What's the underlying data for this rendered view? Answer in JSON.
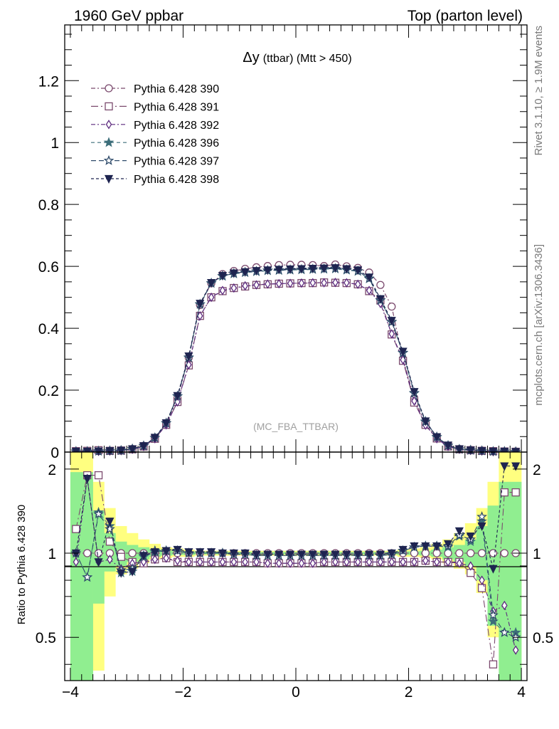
{
  "header": {
    "left": "1960 GeV ppbar",
    "right": "Top (parton level)"
  },
  "side_labels": {
    "rivet": "Rivet 3.1.10, ≥ 1.9M events",
    "mcplots": "mcplots.cern.ch [arXiv:1306.3436]"
  },
  "chart_data": [
    {
      "type": "line",
      "title": "Δy (ttbar) (Mtt > 450)",
      "title_main": "Δy",
      "title_sub": "(ttbar) (Mtt > 450)",
      "annotation": "(MC_FBA_TTBAR)",
      "xlim": [
        -4.1,
        4.1
      ],
      "ylim": [
        0,
        1.38
      ],
      "yticks": [
        0,
        0.2,
        0.4,
        0.6,
        0.8,
        1,
        1.2
      ],
      "ytick_labels": [
        "0",
        "0.2",
        "0.4",
        "0.6",
        "0.8",
        "1",
        "1.2"
      ],
      "legend_position": "top-left",
      "x": [
        -3.9,
        -3.7,
        -3.5,
        -3.3,
        -3.1,
        -2.9,
        -2.7,
        -2.5,
        -2.3,
        -2.1,
        -1.9,
        -1.7,
        -1.5,
        -1.3,
        -1.1,
        -0.9,
        -0.7,
        -0.5,
        -0.3,
        -0.1,
        0.1,
        0.3,
        0.5,
        0.7,
        0.9,
        1.1,
        1.3,
        1.5,
        1.7,
        1.9,
        2.1,
        2.3,
        2.5,
        2.7,
        2.9,
        3.1,
        3.3,
        3.5,
        3.7,
        3.9
      ],
      "series": [
        {
          "name": "Pythia 6.428 390",
          "color": "#7b4a6e",
          "marker": "circle-open",
          "dash": "6,3,2,3",
          "values": [
            0.002,
            0.002,
            0.003,
            0.004,
            0.006,
            0.01,
            0.02,
            0.045,
            0.09,
            0.175,
            0.305,
            0.475,
            0.545,
            0.575,
            0.585,
            0.592,
            0.597,
            0.601,
            0.604,
            0.605,
            0.605,
            0.604,
            0.601,
            0.606,
            0.6,
            0.595,
            0.58,
            0.54,
            0.47,
            0.3,
            0.175,
            0.09,
            0.045,
            0.02,
            0.01,
            0.007,
            0.005,
            0.003,
            0.002,
            0.002
          ]
        },
        {
          "name": "Pythia 6.428 391",
          "color": "#7b4a6e",
          "marker": "square-open",
          "dash": "10,4,2,4",
          "values": [
            0.003,
            0.004,
            0.006,
            0.004,
            0.005,
            0.009,
            0.018,
            0.043,
            0.088,
            0.162,
            0.28,
            0.44,
            0.5,
            0.52,
            0.53,
            0.535,
            0.54,
            0.542,
            0.544,
            0.545,
            0.546,
            0.546,
            0.548,
            0.547,
            0.546,
            0.542,
            0.52,
            0.49,
            0.38,
            0.295,
            0.16,
            0.088,
            0.044,
            0.018,
            0.009,
            0.006,
            0.004,
            0.003,
            0.002,
            0.001
          ]
        },
        {
          "name": "Pythia 6.428 392",
          "color": "#5c2a7e",
          "marker": "diamond-open",
          "dash": "6,3,2,3",
          "values": [
            0.002,
            0.002,
            0.003,
            0.004,
            0.006,
            0.009,
            0.018,
            0.043,
            0.088,
            0.162,
            0.282,
            0.44,
            0.5,
            0.522,
            0.53,
            0.537,
            0.54,
            0.543,
            0.544,
            0.545,
            0.546,
            0.547,
            0.547,
            0.548,
            0.547,
            0.542,
            0.522,
            0.48,
            0.382,
            0.298,
            0.165,
            0.087,
            0.043,
            0.018,
            0.009,
            0.006,
            0.004,
            0.002,
            0.001,
            0.001
          ]
        },
        {
          "name": "Pythia 6.428 396",
          "color": "#3d6e7a",
          "marker": "star-filled",
          "dash": "5,4",
          "values": [
            0.002,
            0.002,
            0.003,
            0.004,
            0.005,
            0.01,
            0.02,
            0.046,
            0.093,
            0.18,
            0.305,
            0.477,
            0.545,
            0.568,
            0.576,
            0.58,
            0.583,
            0.586,
            0.587,
            0.588,
            0.589,
            0.59,
            0.591,
            0.592,
            0.588,
            0.584,
            0.56,
            0.49,
            0.42,
            0.32,
            0.19,
            0.098,
            0.048,
            0.021,
            0.009,
            0.006,
            0.004,
            0.002,
            0.002,
            0.001
          ]
        },
        {
          "name": "Pythia 6.428 397",
          "color": "#2e4a6a",
          "marker": "star-open",
          "dash": "7,4",
          "values": [
            0.002,
            0.002,
            0.003,
            0.004,
            0.005,
            0.01,
            0.02,
            0.046,
            0.094,
            0.181,
            0.306,
            0.478,
            0.546,
            0.569,
            0.577,
            0.581,
            0.584,
            0.587,
            0.588,
            0.589,
            0.59,
            0.591,
            0.592,
            0.593,
            0.589,
            0.585,
            0.561,
            0.491,
            0.421,
            0.321,
            0.191,
            0.099,
            0.049,
            0.021,
            0.009,
            0.006,
            0.004,
            0.002,
            0.002,
            0.001
          ]
        },
        {
          "name": "Pythia 6.428 398",
          "color": "#1e2450",
          "marker": "triangle-down-filled",
          "dash": "4,3",
          "values": [
            0.002,
            0.002,
            0.003,
            0.004,
            0.005,
            0.01,
            0.02,
            0.047,
            0.094,
            0.182,
            0.31,
            0.48,
            0.547,
            0.57,
            0.578,
            0.582,
            0.586,
            0.588,
            0.59,
            0.591,
            0.592,
            0.593,
            0.594,
            0.595,
            0.592,
            0.588,
            0.565,
            0.495,
            0.425,
            0.325,
            0.195,
            0.1,
            0.049,
            0.022,
            0.01,
            0.006,
            0.004,
            0.002,
            0.002,
            0.001
          ]
        }
      ]
    },
    {
      "type": "line",
      "ylabel": "Ratio to Pythia 6.428 390",
      "xlim": [
        -4.1,
        4.1
      ],
      "ylim": [
        0.35,
        2.3
      ],
      "yscale": "log",
      "xticks": [
        -4,
        -2,
        0,
        2,
        4
      ],
      "xtick_labels": [
        "−4",
        "−2",
        "0",
        "2",
        "4"
      ],
      "yticks": [
        0.5,
        1,
        2
      ],
      "ytick_labels": [
        "0.5",
        "1",
        "2"
      ],
      "reference_line": 1,
      "x": [
        -3.9,
        -3.7,
        -3.5,
        -3.3,
        -3.1,
        -2.9,
        -2.7,
        -2.5,
        -2.3,
        -2.1,
        -1.9,
        -1.7,
        -1.5,
        -1.3,
        -1.1,
        -0.9,
        -0.7,
        -0.5,
        -0.3,
        -0.1,
        0.1,
        0.3,
        0.5,
        0.7,
        0.9,
        1.1,
        1.3,
        1.5,
        1.7,
        1.9,
        2.1,
        2.3,
        2.5,
        2.7,
        2.9,
        3.1,
        3.3,
        3.5,
        3.7,
        3.9
      ],
      "bands": {
        "outer": {
          "color": "#ffff80",
          "lo": [
            0.35,
            0.35,
            0.38,
            0.7,
            0.84,
            0.88,
            0.92,
            0.95,
            0.96,
            0.97,
            0.97,
            0.98,
            0.98,
            0.98,
            0.98,
            0.98,
            0.98,
            0.98,
            0.98,
            0.98,
            0.98,
            0.98,
            0.98,
            0.98,
            0.98,
            0.98,
            0.98,
            0.98,
            0.98,
            0.97,
            0.97,
            0.96,
            0.95,
            0.92,
            0.88,
            0.84,
            0.72,
            0.5,
            0.38,
            0.35
          ],
          "hi": [
            2.3,
            2.3,
            1.8,
            1.45,
            1.25,
            1.18,
            1.12,
            1.08,
            1.05,
            1.04,
            1.03,
            1.02,
            1.02,
            1.02,
            1.02,
            1.02,
            1.02,
            1.02,
            1.02,
            1.02,
            1.02,
            1.02,
            1.02,
            1.02,
            1.02,
            1.02,
            1.02,
            1.02,
            1.02,
            1.03,
            1.04,
            1.05,
            1.08,
            1.12,
            1.18,
            1.28,
            1.45,
            1.8,
            2.3,
            2.3
          ]
        },
        "inner": {
          "color": "#90ee90",
          "lo": [
            0.35,
            0.35,
            0.66,
            0.86,
            0.9,
            0.93,
            0.95,
            0.97,
            0.98,
            0.985,
            0.985,
            0.99,
            0.99,
            0.99,
            0.99,
            0.99,
            0.99,
            0.99,
            0.99,
            0.99,
            0.99,
            0.99,
            0.99,
            0.99,
            0.99,
            0.99,
            0.99,
            0.99,
            0.99,
            0.985,
            0.985,
            0.98,
            0.97,
            0.95,
            0.93,
            0.9,
            0.8,
            0.55,
            0.35,
            0.35
          ],
          "hi": [
            1.95,
            1.95,
            1.42,
            1.18,
            1.1,
            1.07,
            1.05,
            1.03,
            1.02,
            1.015,
            1.015,
            1.01,
            1.01,
            1.01,
            1.01,
            1.01,
            1.01,
            1.01,
            1.01,
            1.01,
            1.01,
            1.01,
            1.01,
            1.01,
            1.01,
            1.01,
            1.01,
            1.01,
            1.01,
            1.015,
            1.015,
            1.02,
            1.03,
            1.05,
            1.07,
            1.12,
            1.25,
            1.48,
            1.8,
            1.8
          ]
        }
      },
      "series": [
        {
          "name": "Pythia 6.428 390",
          "color": "#7b4a6e",
          "marker": "circle-open",
          "dash": "6,3,2,3",
          "values": [
            1.0,
            1.0,
            1.0,
            1.0,
            1.0,
            1.0,
            1.0,
            1.0,
            1.0,
            1.0,
            1.0,
            1.0,
            1.0,
            1.0,
            1.0,
            1.0,
            1.0,
            1.0,
            1.0,
            1.0,
            1.0,
            1.0,
            1.0,
            1.0,
            1.0,
            1.0,
            1.0,
            1.0,
            1.0,
            1.0,
            1.0,
            1.0,
            1.0,
            1.0,
            1.0,
            1.0,
            1.0,
            1.0,
            1.0,
            1.0
          ]
        },
        {
          "name": "Pythia 6.428 391",
          "color": "#7b4a6e",
          "marker": "square-open",
          "dash": "10,4,2,4",
          "values": [
            1.22,
            1.9,
            1.9,
            1.1,
            0.97,
            0.93,
            0.92,
            0.95,
            0.96,
            0.93,
            0.93,
            0.93,
            0.93,
            0.93,
            0.93,
            0.93,
            0.93,
            0.92,
            0.92,
            0.92,
            0.92,
            0.92,
            0.93,
            0.93,
            0.93,
            0.93,
            0.93,
            0.93,
            0.93,
            0.93,
            0.93,
            0.94,
            0.93,
            0.93,
            0.93,
            0.85,
            0.75,
            0.4,
            1.65,
            1.65
          ]
        },
        {
          "name": "Pythia 6.428 392",
          "color": "#5c2a7e",
          "marker": "diamond-open",
          "dash": "6,3,2,3",
          "values": [
            0.93,
            1.85,
            0.93,
            0.95,
            0.88,
            0.92,
            0.93,
            0.95,
            0.96,
            0.94,
            0.93,
            0.93,
            0.93,
            0.93,
            0.93,
            0.93,
            0.93,
            0.92,
            0.92,
            0.92,
            0.92,
            0.92,
            0.93,
            0.93,
            0.93,
            0.93,
            0.93,
            0.93,
            0.93,
            0.93,
            0.93,
            0.94,
            0.93,
            0.93,
            0.92,
            0.9,
            0.8,
            0.62,
            0.65,
            0.45
          ]
        },
        {
          "name": "Pythia 6.428 396",
          "color": "#3d6e7a",
          "marker": "star-filled",
          "dash": "5,4",
          "values": [
            1.0,
            0.82,
            1.4,
            1.25,
            0.85,
            0.86,
            0.97,
            1.01,
            1.02,
            1.02,
            1.0,
            1.0,
            1.0,
            1.0,
            0.99,
            0.99,
            0.98,
            0.98,
            0.98,
            0.98,
            0.98,
            0.98,
            0.98,
            0.98,
            0.98,
            0.98,
            0.98,
            0.98,
            0.99,
            1.02,
            1.05,
            1.06,
            1.06,
            1.05,
            1.15,
            1.1,
            1.3,
            0.57,
            0.52,
            0.52
          ]
        },
        {
          "name": "Pythia 6.428 397",
          "color": "#2e4a6a",
          "marker": "star-open",
          "dash": "7,4",
          "values": [
            1.0,
            0.82,
            1.38,
            1.22,
            0.87,
            0.88,
            0.98,
            1.02,
            1.02,
            1.02,
            1.0,
            1.0,
            1.0,
            1.0,
            0.99,
            0.99,
            0.98,
            0.98,
            0.98,
            0.98,
            0.98,
            0.98,
            0.98,
            0.98,
            0.98,
            0.98,
            0.98,
            0.98,
            0.99,
            1.02,
            1.05,
            1.06,
            1.06,
            1.06,
            1.16,
            1.12,
            1.35,
            0.6,
            0.52,
            0.5
          ]
        },
        {
          "name": "Pythia 6.428 398",
          "color": "#1e2450",
          "marker": "triangle-down-filled",
          "dash": "4,3",
          "values": [
            1.0,
            1.85,
            0.93,
            1.3,
            0.85,
            0.86,
            0.98,
            1.01,
            1.02,
            1.03,
            1.01,
            1.01,
            1.01,
            1.0,
            1.0,
            1.0,
            0.99,
            0.99,
            0.99,
            0.99,
            0.99,
            0.99,
            0.99,
            0.99,
            0.99,
            0.99,
            0.99,
            0.99,
            1.0,
            1.03,
            1.06,
            1.06,
            1.06,
            1.08,
            1.2,
            1.15,
            1.25,
            0.88,
            2.05,
            2.05
          ]
        }
      ]
    }
  ]
}
